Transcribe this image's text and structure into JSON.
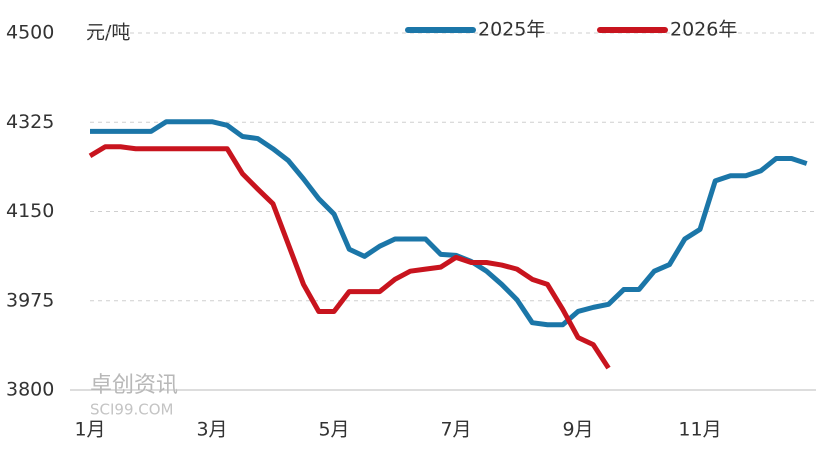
{
  "chart_data": {
    "type": "line",
    "y_label": "元/吨",
    "watermark": [
      "卓创资讯",
      "SCI99.COM"
    ],
    "categories": [
      "1月",
      null,
      null,
      null,
      null,
      null,
      null,
      null,
      "3月",
      null,
      null,
      null,
      null,
      null,
      null,
      null,
      "5月",
      null,
      null,
      null,
      null,
      null,
      null,
      null,
      "7月",
      null,
      null,
      null,
      null,
      null,
      null,
      null,
      "9月",
      null,
      null,
      null,
      null,
      null,
      null,
      null,
      "11月",
      null,
      null,
      null,
      null,
      null,
      null,
      null
    ],
    "series": [
      {
        "name": "2025年",
        "color": "#1b76a8",
        "values": [
          4307,
          4307,
          4307,
          4307,
          4307,
          4326,
          4326,
          4326,
          4326,
          4319,
          4297,
          4293,
          4273,
          4250,
          4214,
          4175,
          4145,
          4076,
          4062,
          4082,
          4096,
          4096,
          4096,
          4066,
          4064,
          4052,
          4033,
          4007,
          3977,
          3932,
          3928,
          3928,
          3954,
          3962,
          3968,
          3997,
          3997,
          4033,
          4046,
          4096,
          4115,
          4210,
          4220,
          4220,
          4230,
          4254,
          4254,
          4244
        ]
      },
      {
        "name": "2026年",
        "color": "#c8141e",
        "values": [
          4259,
          4277,
          4277,
          4273,
          4273,
          4273,
          4273,
          4273,
          4273,
          4273,
          4224,
          4194,
          4165,
          4086,
          4007,
          3954,
          3954,
          3993,
          3993,
          3993,
          4017,
          4033,
          4037,
          4041,
          4060,
          4050,
          4050,
          4045,
          4037,
          4017,
          4007,
          3958,
          3903,
          3889,
          3843,
          null,
          null,
          null,
          null,
          null,
          null,
          null,
          null,
          null,
          null,
          null,
          null,
          null
        ]
      }
    ],
    "ylim": [
      3800,
      4500
    ],
    "yticks": [
      3800,
      3975,
      4150,
      4325,
      4500
    ],
    "grid": true,
    "legend": "top-right"
  }
}
